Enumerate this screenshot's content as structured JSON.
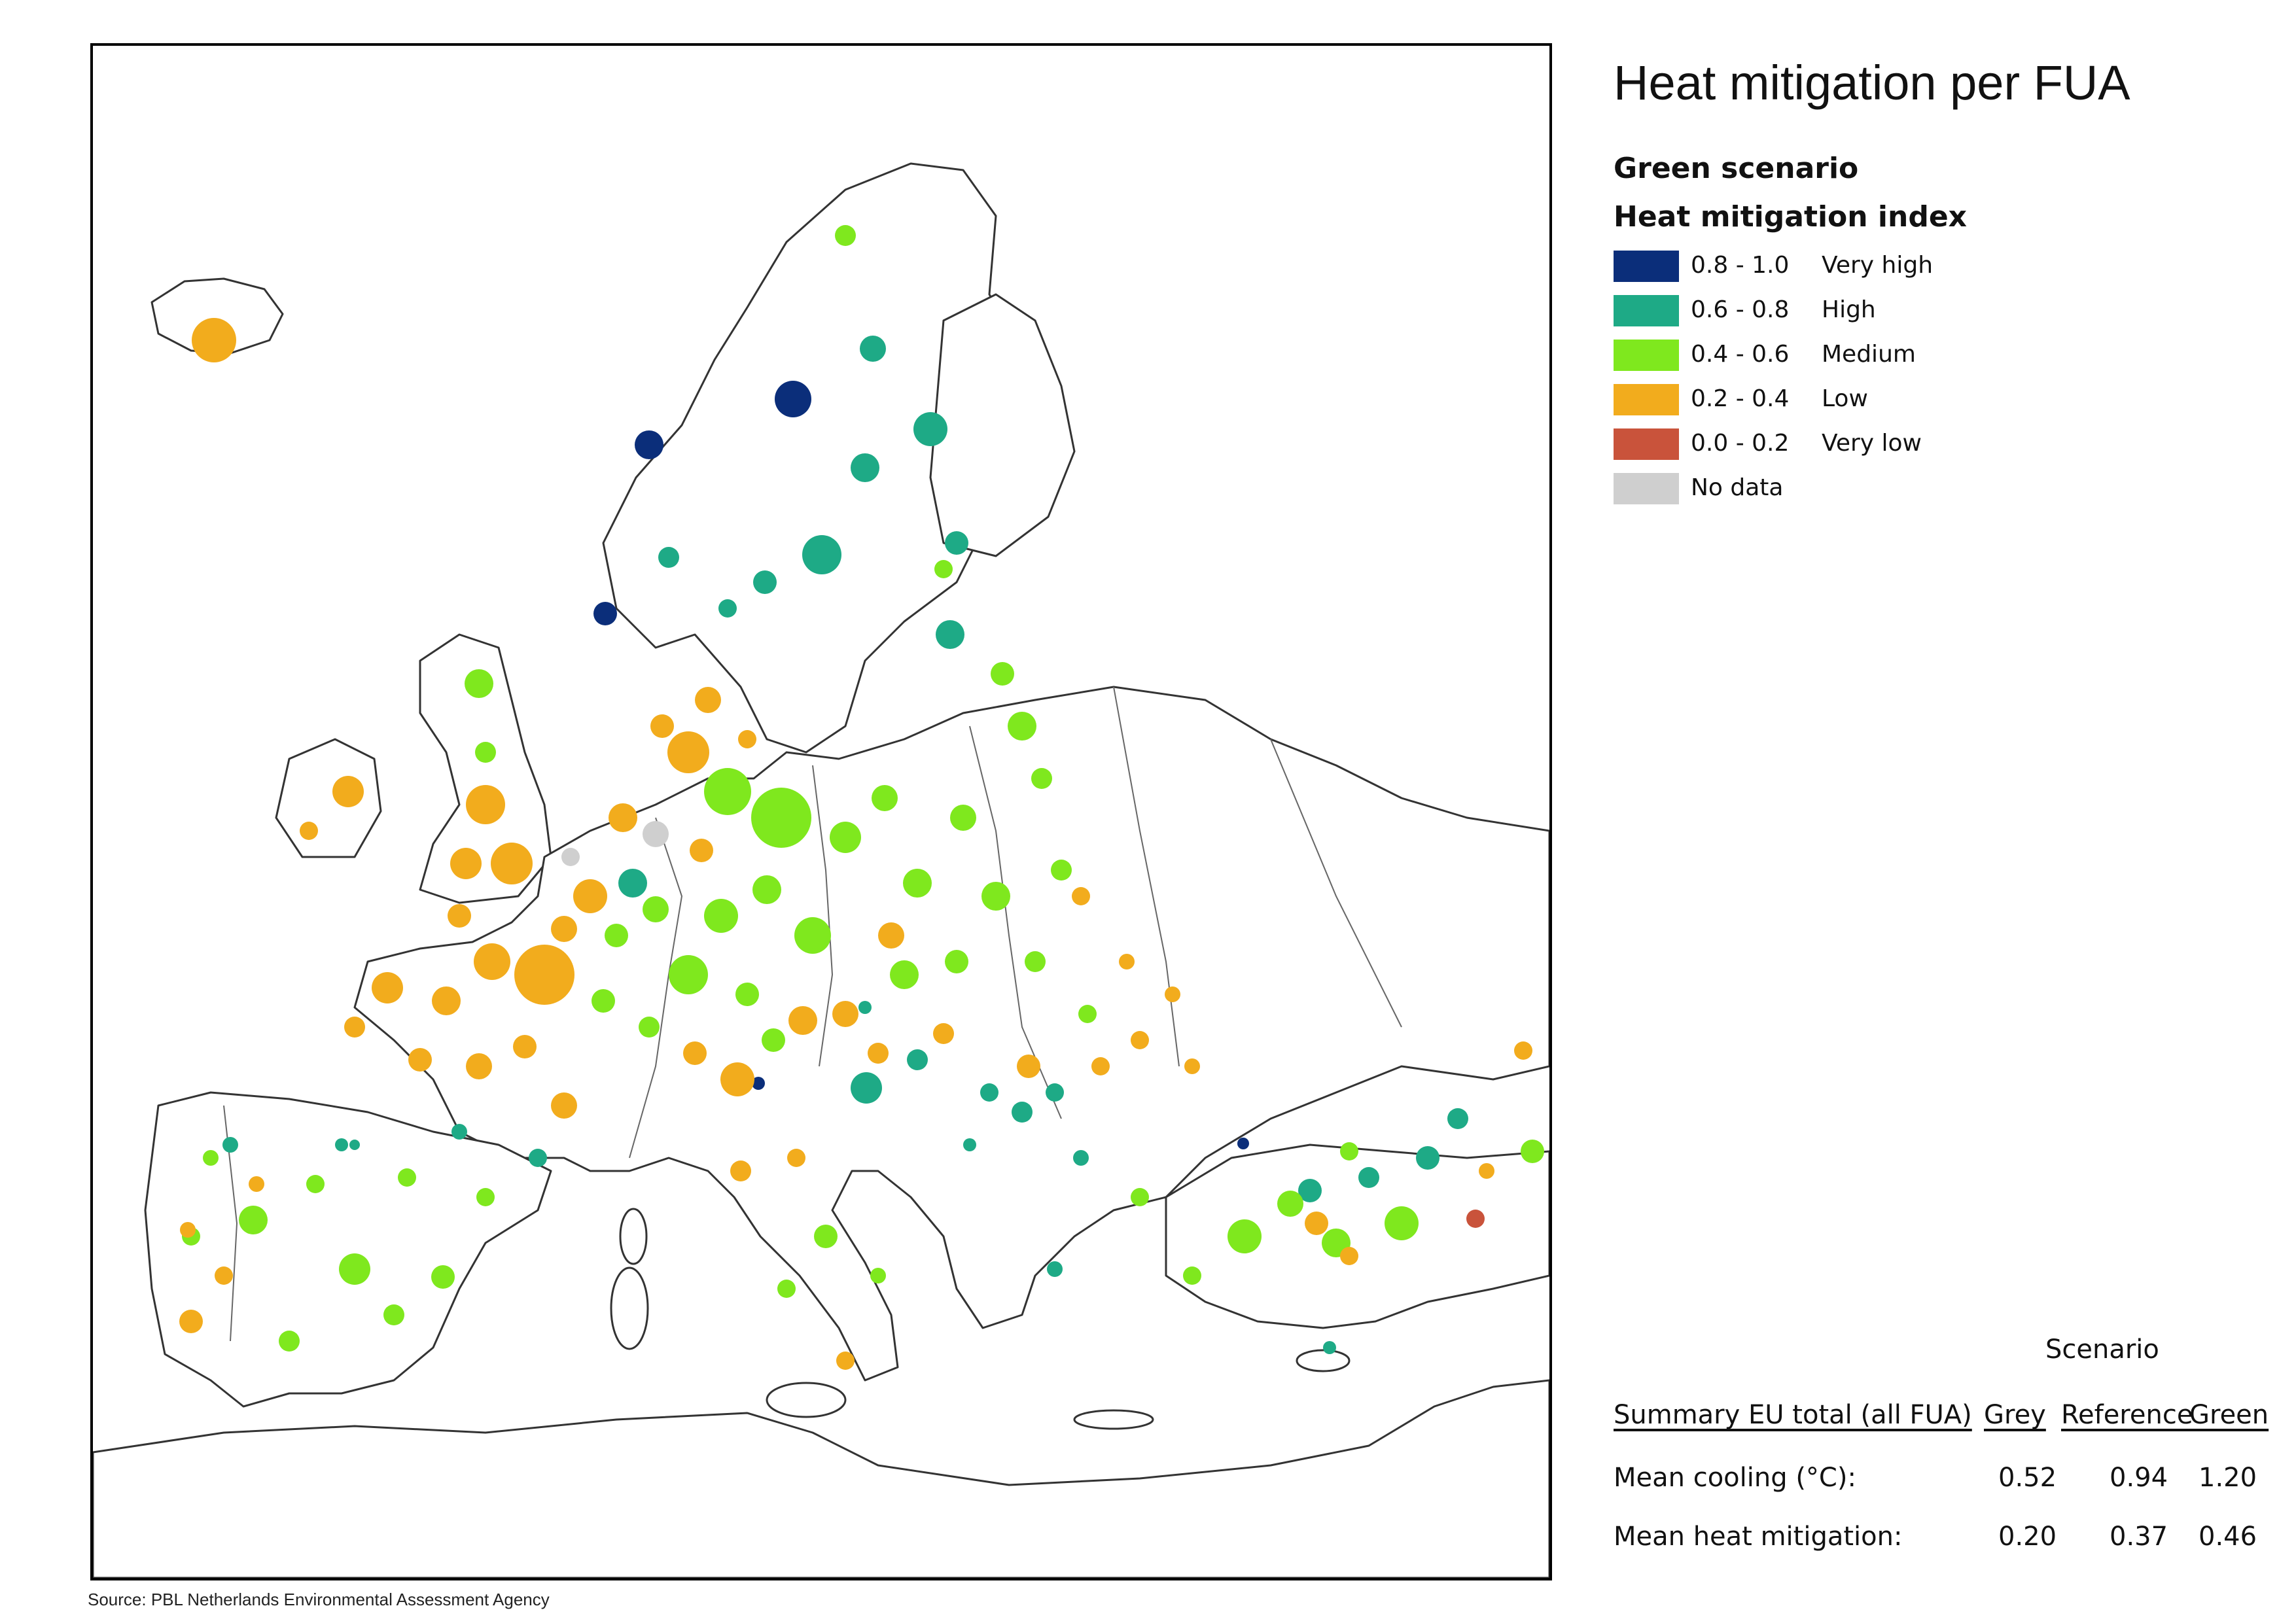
{
  "title": "Heat mitigation per FUA",
  "scenario_heading": "Green scenario",
  "legend": {
    "title": "Heat mitigation index",
    "items": [
      {
        "range": "0.8 - 1.0",
        "label": "Very high",
        "color": "#0b2e7a"
      },
      {
        "range": "0.6 - 0.8",
        "label": "High",
        "color": "#1eaa86"
      },
      {
        "range": "0.4 - 0.6",
        "label": "Medium",
        "color": "#7fe81e"
      },
      {
        "range": "0.2 - 0.4",
        "label": "Low",
        "color": "#f2ac1d"
      },
      {
        "range": "0.0 - 0.2",
        "label": "Very low",
        "color": "#c9533b"
      },
      {
        "range": "",
        "label": "No data",
        "color": "#cfcfcf"
      }
    ]
  },
  "summary": {
    "group_label": "Scenario",
    "row_header": "Summary EU total (all FUA)",
    "columns": [
      "Grey",
      "Reference",
      "Green"
    ],
    "rows": [
      {
        "label": "Mean cooling (°C):",
        "values": [
          "0.52",
          "0.94",
          "1.20"
        ]
      },
      {
        "label": "Mean heat mitigation:",
        "values": [
          "0.20",
          "0.37",
          "0.46"
        ]
      }
    ]
  },
  "source": "Source: PBL Netherlands Environmental Assessment Agency"
}
